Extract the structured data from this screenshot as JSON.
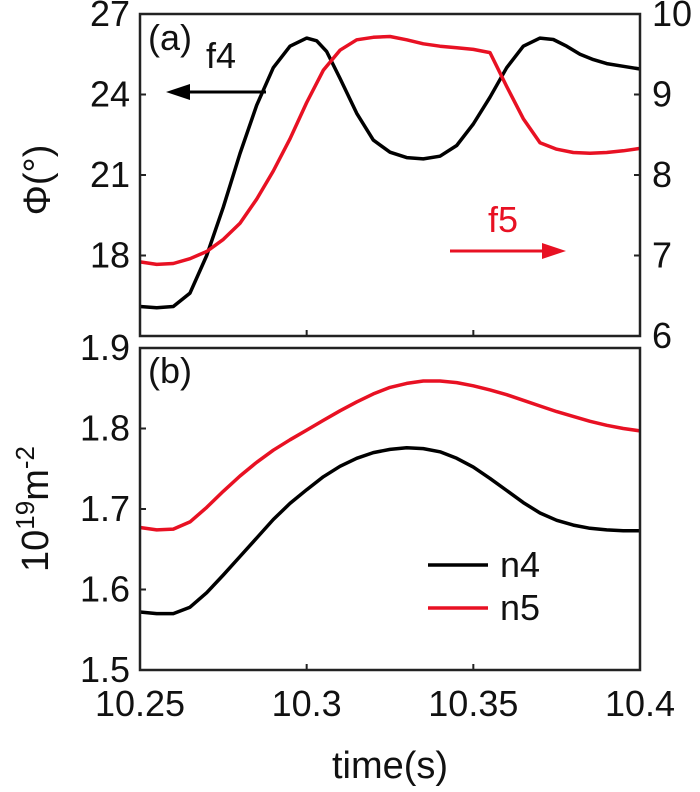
{
  "colors": {
    "black": "#000000",
    "red": "#e81123"
  },
  "chart_data": [
    {
      "panel_label": "(a)",
      "type": "line",
      "xlim": [
        10.25,
        10.4
      ],
      "ylim_left": [
        15,
        27
      ],
      "ylim_right": [
        6,
        10
      ],
      "left_ticks": [
        "18",
        "21",
        "24",
        "27"
      ],
      "right_ticks": [
        "6",
        "7",
        "8",
        "9",
        "10"
      ],
      "ylabel": "Φ(°)",
      "annotations": {
        "f4": "f4",
        "f5": "f5"
      },
      "series": [
        {
          "axis": "left",
          "color": "#000000",
          "x": [
            10.25,
            10.255,
            10.26,
            10.265,
            10.27,
            10.275,
            10.28,
            10.285,
            10.29,
            10.295,
            10.3,
            10.303,
            10.306,
            10.31,
            10.315,
            10.32,
            10.325,
            10.33,
            10.335,
            10.34,
            10.345,
            10.35,
            10.355,
            10.36,
            10.365,
            10.37,
            10.374,
            10.378,
            10.382,
            10.386,
            10.39,
            10.395,
            10.4
          ],
          "values": [
            16.1,
            16.05,
            16.1,
            16.6,
            18.0,
            19.8,
            21.8,
            23.6,
            25.0,
            25.8,
            26.1,
            26.0,
            25.6,
            24.6,
            23.3,
            22.3,
            21.85,
            21.65,
            21.6,
            21.7,
            22.1,
            22.9,
            23.9,
            25.0,
            25.8,
            26.1,
            26.05,
            25.8,
            25.5,
            25.3,
            25.15,
            25.05,
            24.95
          ]
        },
        {
          "axis": "right",
          "color": "#e81123",
          "x": [
            10.25,
            10.255,
            10.26,
            10.265,
            10.27,
            10.275,
            10.28,
            10.285,
            10.29,
            10.295,
            10.3,
            10.305,
            10.31,
            10.315,
            10.32,
            10.325,
            10.33,
            10.335,
            10.34,
            10.345,
            10.35,
            10.355,
            10.36,
            10.365,
            10.37,
            10.375,
            10.38,
            10.385,
            10.39,
            10.395,
            10.4
          ],
          "values": [
            6.92,
            6.89,
            6.9,
            6.96,
            7.05,
            7.2,
            7.4,
            7.7,
            8.05,
            8.45,
            8.9,
            9.3,
            9.55,
            9.68,
            9.71,
            9.72,
            9.68,
            9.63,
            9.6,
            9.58,
            9.56,
            9.52,
            9.1,
            8.7,
            8.4,
            8.32,
            8.28,
            8.27,
            8.28,
            8.3,
            8.33
          ]
        }
      ]
    },
    {
      "panel_label": "(b)",
      "type": "line",
      "xlim": [
        10.25,
        10.4
      ],
      "ylim": [
        1.5,
        1.9
      ],
      "y_ticks": [
        "1.5",
        "1.6",
        "1.7",
        "1.8",
        "1.9"
      ],
      "x_ticks": [
        "10.25",
        "10.3",
        "10.35",
        "10.4"
      ],
      "xlabel": "time(s)",
      "ylabel_base": "10",
      "ylabel_exp": "19",
      "ylabel_unit": "m",
      "ylabel_unit_exp": "-2",
      "series": [
        {
          "name": "n4",
          "color": "#000000",
          "x": [
            10.25,
            10.255,
            10.26,
            10.265,
            10.27,
            10.275,
            10.28,
            10.285,
            10.29,
            10.295,
            10.3,
            10.305,
            10.31,
            10.315,
            10.32,
            10.325,
            10.33,
            10.335,
            10.34,
            10.345,
            10.35,
            10.355,
            10.36,
            10.365,
            10.37,
            10.375,
            10.38,
            10.385,
            10.39,
            10.395,
            10.4
          ],
          "values": [
            1.572,
            1.57,
            1.57,
            1.578,
            1.596,
            1.618,
            1.641,
            1.664,
            1.687,
            1.707,
            1.724,
            1.74,
            1.753,
            1.763,
            1.77,
            1.774,
            1.776,
            1.775,
            1.771,
            1.763,
            1.752,
            1.738,
            1.723,
            1.708,
            1.695,
            1.686,
            1.68,
            1.676,
            1.674,
            1.673,
            1.673
          ]
        },
        {
          "name": "n5",
          "color": "#e81123",
          "x": [
            10.25,
            10.255,
            10.26,
            10.265,
            10.27,
            10.275,
            10.28,
            10.285,
            10.29,
            10.295,
            10.3,
            10.305,
            10.31,
            10.315,
            10.32,
            10.325,
            10.33,
            10.335,
            10.34,
            10.345,
            10.35,
            10.355,
            10.36,
            10.365,
            10.37,
            10.375,
            10.38,
            10.385,
            10.39,
            10.395,
            10.4
          ],
          "values": [
            1.677,
            1.674,
            1.675,
            1.684,
            1.702,
            1.722,
            1.741,
            1.758,
            1.773,
            1.786,
            1.798,
            1.81,
            1.822,
            1.833,
            1.843,
            1.851,
            1.856,
            1.859,
            1.859,
            1.857,
            1.853,
            1.848,
            1.842,
            1.835,
            1.828,
            1.821,
            1.815,
            1.809,
            1.804,
            1.8,
            1.797
          ]
        }
      ]
    }
  ]
}
